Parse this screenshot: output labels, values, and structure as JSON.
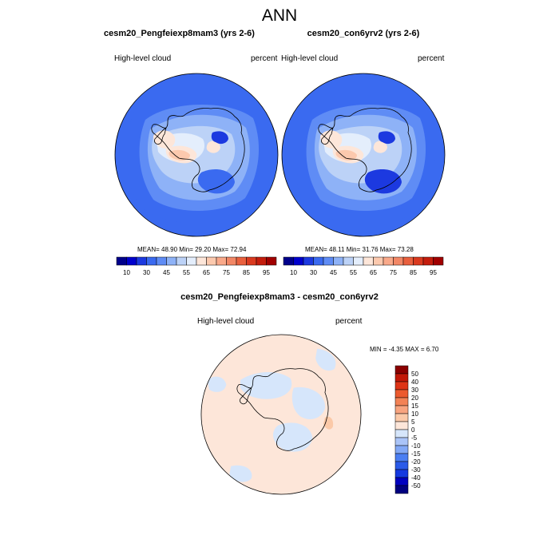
{
  "title": "ANN",
  "colors": {
    "base_levels": [
      "#00008b",
      "#0000cd",
      "#1c39e0",
      "#3a6af0",
      "#5f8cf5",
      "#8eb2f7",
      "#bcd2f7",
      "#e4eefc",
      "#fde6d9",
      "#fcc9ae",
      "#f9a98a",
      "#f28766",
      "#e9603e",
      "#da3a1f",
      "#c41d0d",
      "#a10000",
      "#7a0000"
    ],
    "diff_levels": [
      "#000080",
      "#0000c0",
      "#1439e0",
      "#2a5ae8",
      "#4a7ef2",
      "#82a8f6",
      "#aac4f8",
      "#d6e6fb",
      "#fde6d9",
      "#fbc9a8",
      "#f8a47f",
      "#f38255",
      "#ec5a2e",
      "#de3416",
      "#c21808",
      "#8b0000"
    ],
    "coast": "#000000"
  },
  "chart_data": [
    {
      "type": "polar-contour",
      "title": "cesm20_Pengfeiexp8mam3 (yrs 2-6)",
      "left_label": "High-level cloud",
      "right_label": "percent",
      "stats": {
        "mean": "48.90",
        "min": "29.20",
        "max": "72.94"
      },
      "colorbar_ticks": [
        "10",
        "30",
        "45",
        "55",
        "65",
        "75",
        "85",
        "95"
      ],
      "levels": [
        10,
        20,
        30,
        35,
        40,
        45,
        50,
        55,
        60,
        65,
        70,
        75,
        80,
        85,
        90,
        95
      ]
    },
    {
      "type": "polar-contour",
      "title": "cesm20_con6yrv2 (yrs 2-6)",
      "left_label": "High-level cloud",
      "right_label": "percent",
      "stats": {
        "mean": "48.11",
        "min": "31.76",
        "max": "73.28"
      },
      "colorbar_ticks": [
        "10",
        "30",
        "45",
        "55",
        "65",
        "75",
        "85",
        "95"
      ],
      "levels": [
        10,
        20,
        30,
        35,
        40,
        45,
        50,
        55,
        60,
        65,
        70,
        75,
        80,
        85,
        90,
        95
      ]
    },
    {
      "type": "polar-contour-difference",
      "title": "cesm20_Pengfeiexp8mam3 - cesm20_con6yrv2",
      "left_label": "High-level cloud",
      "right_label": "percent",
      "stats": {
        "min": "-4.35",
        "max": "6.70"
      },
      "colorbar_ticks": [
        "50",
        "40",
        "30",
        "20",
        "15",
        "10",
        "5",
        "0",
        "-5",
        "-10",
        "-15",
        "-20",
        "-30",
        "-40",
        "-50"
      ],
      "levels": [
        -50,
        -40,
        -30,
        -20,
        -15,
        -10,
        -5,
        0,
        5,
        10,
        15,
        20,
        30,
        40,
        50
      ]
    }
  ],
  "labels": {
    "mean_prefix": "MEAN=",
    "min_prefix": "Min=",
    "max_prefix": "Max=",
    "diff_min_prefix": "MIN =",
    "diff_max_prefix": "MAX ="
  }
}
